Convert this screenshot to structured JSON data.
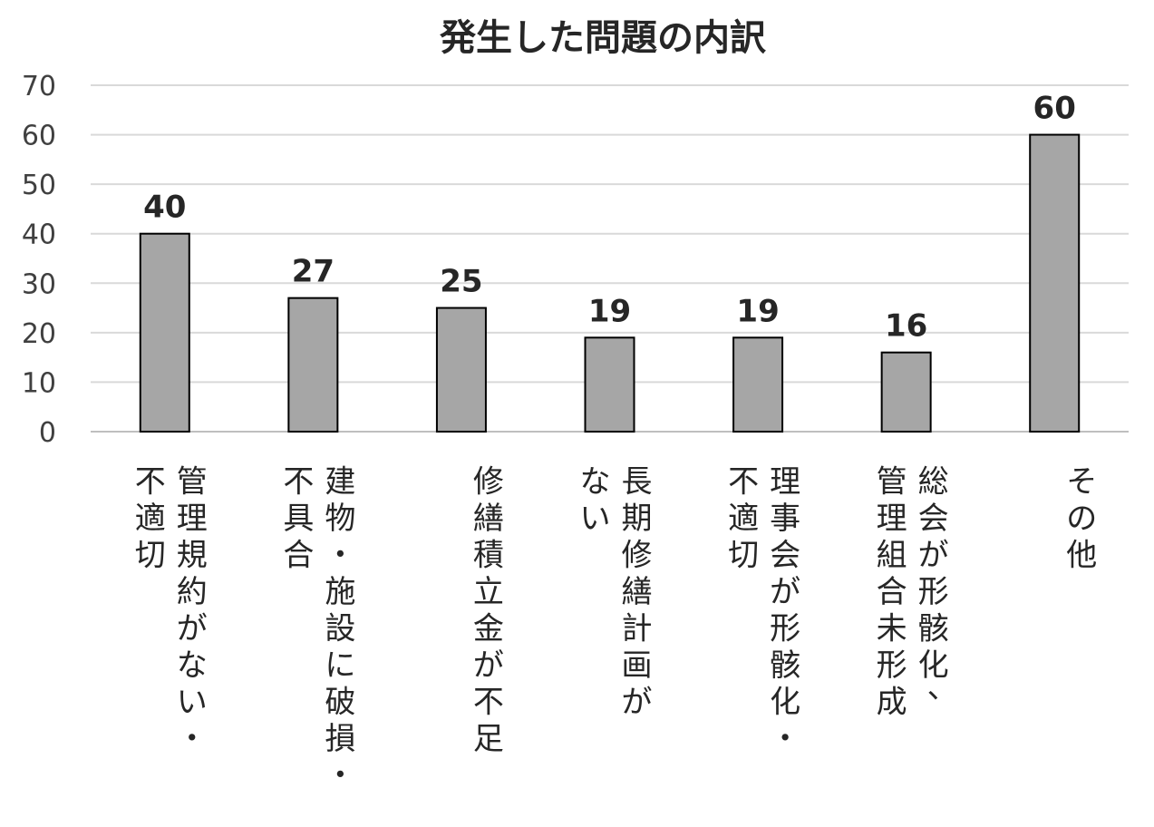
{
  "chart_data": {
    "type": "bar",
    "title": "発生した問題の内訳",
    "xlabel": "",
    "ylabel": "",
    "ylim": [
      0,
      70
    ],
    "yticks": [
      0,
      10,
      20,
      30,
      40,
      50,
      60,
      70
    ],
    "grid": true,
    "categories": [
      "管理規約がない・不適切",
      "建物・施設に破損・不具合",
      "修繕積立金が不足",
      "長期修繕計画がない",
      "理事会が形骸化・不適切",
      "総会が形骸化、管理組合未形成",
      "その他"
    ],
    "category_label_columns": [
      [
        "管理規約がない・",
        "不適切"
      ],
      [
        "建物・施設に破損・",
        "不具合"
      ],
      [
        "修繕積立金が不足"
      ],
      [
        "長期修繕計画が",
        "ない"
      ],
      [
        "理事会が形骸化・",
        "不適切"
      ],
      [
        "総会が形骸化、",
        "管理組合未形成"
      ],
      [
        "その他"
      ]
    ],
    "values": [
      40,
      27,
      25,
      19,
      19,
      16,
      60
    ],
    "data_labels": [
      "40",
      "27",
      "25",
      "19",
      "19",
      "16",
      "60"
    ],
    "colors": {
      "bar": "#a6a6a6",
      "bar_stroke": "#000000",
      "grid": "#d9d9d9",
      "text": "#262626"
    }
  }
}
